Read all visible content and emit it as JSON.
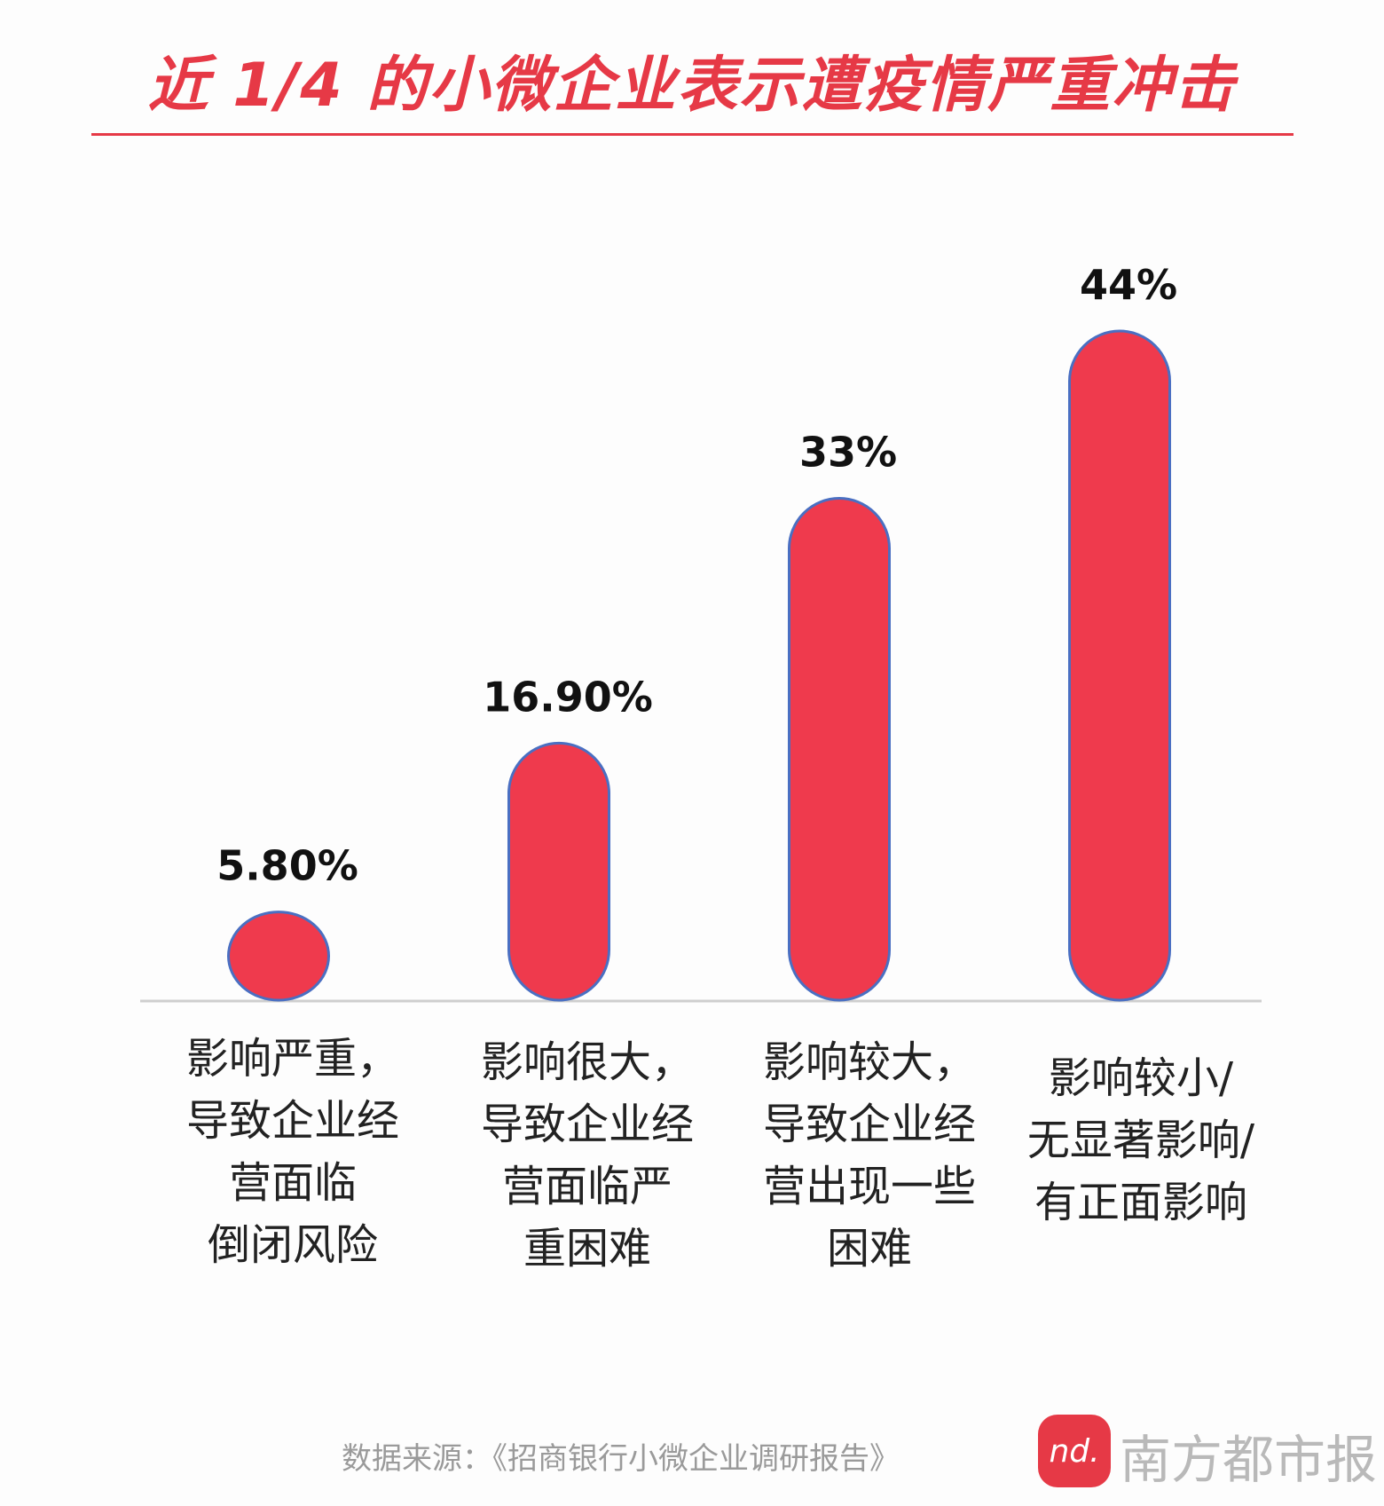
{
  "title": "近 1/4 的小微企业表示遭疫情严重冲击",
  "chart_data": {
    "type": "bar",
    "categories": [
      "影响严重，\n导致企业经\n营面临\n倒闭风险",
      "影响很大，\n导致企业经\n营面临严\n重困难",
      "影响较大，\n导致企业经\n营出现一些\n困难",
      "影响较小/\n无显著影响/\n有正面影响"
    ],
    "values": [
      5.8,
      16.9,
      33,
      44
    ],
    "data_labels": [
      "5.80%",
      "16.90%",
      "33%",
      "44%"
    ],
    "bar_color": "#ef3a4d",
    "bar_stroke": "#4a6fc2",
    "ylim": [
      0,
      44
    ]
  },
  "source": "数据来源：《招商银行小微企业调研报告》",
  "brand": {
    "logo_text": "nd.",
    "name": "南方都市报"
  }
}
